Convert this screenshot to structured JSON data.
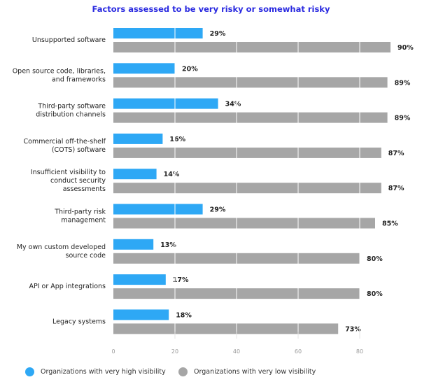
{
  "chart_data": {
    "type": "bar",
    "orientation": "horizontal",
    "title": "Factors assessed to be very risky or somewhat risky",
    "categories": [
      [
        "Unsupported software"
      ],
      [
        "Open source code, libraries,",
        "and frameworks"
      ],
      [
        "Third-party software",
        "distribution channels"
      ],
      [
        "Commercial off-the-shelf",
        "(COTS) software"
      ],
      [
        "Insufficient visibility to",
        "conduct security",
        "assessments"
      ],
      [
        "Third-party risk",
        "management"
      ],
      [
        "My own custom developed",
        "source code"
      ],
      [
        "API or App integrations"
      ],
      [
        "Legacy systems"
      ]
    ],
    "series": [
      {
        "name": "Organizations with very high visibility",
        "color": "#2ea8f5",
        "values": [
          29,
          20,
          34,
          16,
          14,
          29,
          13,
          17,
          18
        ]
      },
      {
        "name": "Organizations with very low visibility",
        "color": "#a6a6a6",
        "values": [
          90,
          89,
          89,
          87,
          87,
          85,
          80,
          80,
          73
        ]
      }
    ],
    "value_suffix": "%",
    "xlim": [
      0,
      90
    ],
    "xticks": [
      0,
      20,
      40,
      60,
      80
    ],
    "grid": true,
    "legend": "bottom"
  }
}
